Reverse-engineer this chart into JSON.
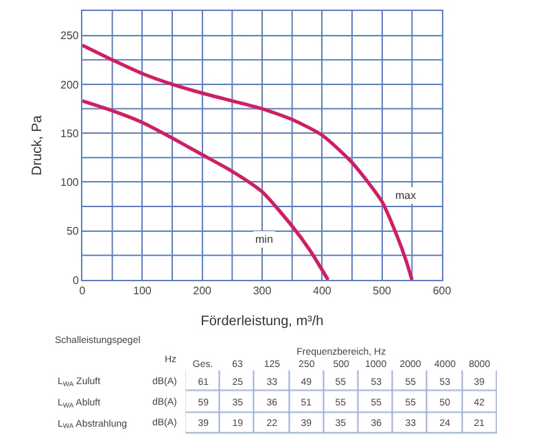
{
  "chart_data": [
    {
      "type": "line",
      "xlabel": "Förderleistung, m³/h",
      "ylabel": "Druck, Pa",
      "xlim": [
        0,
        600
      ],
      "ylim": [
        0,
        275
      ],
      "xticks": [
        0,
        100,
        200,
        300,
        400,
        500,
        600
      ],
      "yticks": [
        0,
        50,
        100,
        150,
        200,
        250
      ],
      "grid": true,
      "line_style": "solid",
      "series": [
        {
          "name": "max",
          "color": "#d81b60",
          "x": [
            0,
            50,
            100,
            150,
            200,
            250,
            300,
            350,
            400,
            450,
            500,
            525,
            540,
            550
          ],
          "values": [
            240,
            225,
            211,
            200,
            191,
            183,
            175,
            164,
            148,
            120,
            80,
            45,
            20,
            0
          ]
        },
        {
          "name": "min",
          "color": "#d81b60",
          "x": [
            0,
            50,
            100,
            150,
            200,
            250,
            300,
            350,
            380,
            410
          ],
          "values": [
            183,
            173,
            161,
            145,
            128,
            111,
            90,
            55,
            30,
            0
          ]
        }
      ]
    },
    {
      "type": "heatmap",
      "data_labels": true,
      "title": "Schalleistungspegel",
      "xlabel": "Frequenzbereich, Hz",
      "annotations": [
        "Hz"
      ],
      "categories": [
        "Ges.",
        "63",
        "125",
        "250",
        "500",
        "1000",
        "2000",
        "4000",
        "8000"
      ],
      "y_categories": [
        "L$_{WA}$ Zuluft",
        "L$_{WA}$ Abluft",
        "L$_{WA}$ Abstrahlung"
      ],
      "y2_categories": [
        "dB(A)",
        "dB(A)",
        "dB(A)"
      ],
      "cells": [
        [
          61,
          25,
          33,
          49,
          55,
          53,
          55,
          53,
          39
        ],
        [
          59,
          35,
          36,
          51,
          55,
          55,
          55,
          50,
          42
        ],
        [
          39,
          19,
          22,
          39,
          35,
          36,
          33,
          24,
          21
        ]
      ]
    }
  ]
}
